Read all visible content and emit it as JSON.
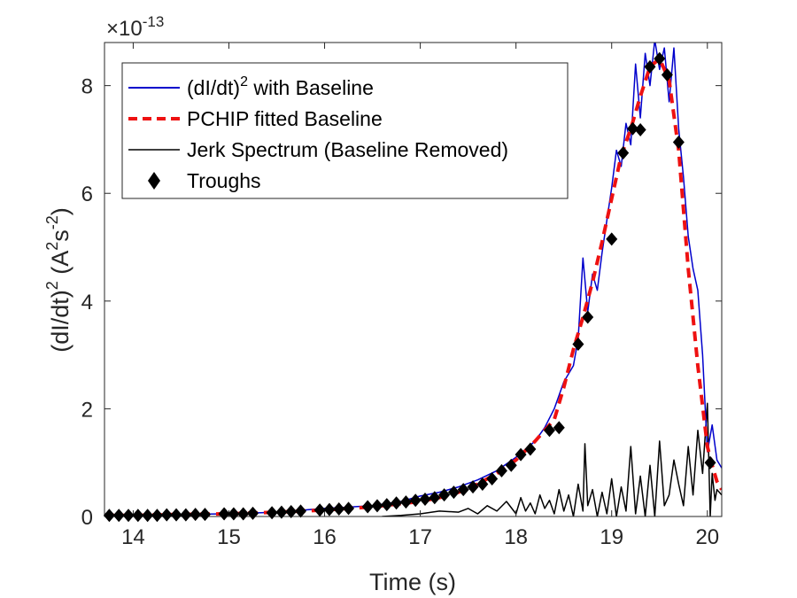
{
  "chart_data": {
    "type": "line",
    "xlabel": "Time (s)",
    "ylabel": {
      "base": "(dI/dt)",
      "exp1": "2",
      "mid": " (A",
      "exp2": "2",
      "mid2": "s",
      "exp3": "-2",
      "end": ")"
    },
    "y_multiplier": {
      "prefix": "×10",
      "exponent": "-13"
    },
    "xlim": [
      13.7,
      20.15
    ],
    "ylim": [
      0,
      8.8
    ],
    "xticks": [
      14,
      15,
      16,
      17,
      18,
      19,
      20
    ],
    "yticks": [
      0,
      2,
      4,
      6,
      8
    ],
    "legend_position": "top-left",
    "legend": [
      {
        "label": "(dI/dt)",
        "sup": "2",
        "after": " with Baseline",
        "color": "#0000cc",
        "style": "solid"
      },
      {
        "label": "PCHIP fitted Baseline",
        "sup": "",
        "after": "",
        "color": "#ee1111",
        "style": "dashed"
      },
      {
        "label": "Jerk Spectrum (Baseline Removed)",
        "sup": "",
        "after": "",
        "color": "#000000",
        "style": "solid"
      },
      {
        "label": "Troughs",
        "sup": "",
        "after": "",
        "color": "#000000",
        "style": "marker"
      }
    ],
    "series": [
      {
        "name": "(dI/dt)^2 with Baseline",
        "color": "#0000cc",
        "x": [
          13.7,
          14.0,
          14.5,
          15.0,
          15.5,
          16.0,
          16.5,
          16.8,
          17.0,
          17.2,
          17.4,
          17.6,
          17.8,
          18.0,
          18.1,
          18.2,
          18.3,
          18.4,
          18.5,
          18.6,
          18.65,
          18.7,
          18.75,
          18.8,
          18.85,
          18.9,
          18.95,
          19.0,
          19.05,
          19.1,
          19.15,
          19.2,
          19.25,
          19.3,
          19.35,
          19.4,
          19.45,
          19.5,
          19.55,
          19.6,
          19.65,
          19.7,
          19.75,
          19.8,
          19.85,
          19.9,
          19.95,
          20.0,
          20.05,
          20.1,
          20.15
        ],
        "y": [
          0.02,
          0.02,
          0.04,
          0.05,
          0.08,
          0.15,
          0.2,
          0.28,
          0.38,
          0.45,
          0.55,
          0.68,
          0.85,
          1.1,
          1.25,
          1.4,
          1.65,
          2.0,
          2.5,
          2.8,
          3.3,
          4.8,
          3.8,
          4.5,
          4.2,
          4.9,
          5.5,
          6.1,
          6.8,
          6.5,
          7.3,
          6.9,
          8.4,
          7.4,
          8.6,
          8.0,
          8.85,
          8.3,
          8.7,
          7.7,
          8.7,
          7.2,
          6.3,
          5.2,
          4.6,
          4.2,
          3.0,
          1.2,
          1.7,
          1.05,
          0.9
        ]
      },
      {
        "name": "PCHIP fitted Baseline",
        "color": "#ee1111",
        "x": [
          13.7,
          14.0,
          14.5,
          15.0,
          15.5,
          16.0,
          16.5,
          17.0,
          17.2,
          17.4,
          17.6,
          17.8,
          18.0,
          18.2,
          18.3,
          18.4,
          18.5,
          18.6,
          18.7,
          18.8,
          18.9,
          19.0,
          19.1,
          19.2,
          19.3,
          19.4,
          19.5,
          19.6,
          19.7,
          19.8,
          19.9,
          20.0,
          20.05,
          20.1,
          20.15
        ],
        "y": [
          0.02,
          0.02,
          0.04,
          0.05,
          0.08,
          0.12,
          0.18,
          0.28,
          0.35,
          0.45,
          0.6,
          0.8,
          1.05,
          1.4,
          1.6,
          1.8,
          2.4,
          3.1,
          3.7,
          4.35,
          5.1,
          5.9,
          6.7,
          7.2,
          7.8,
          8.35,
          8.5,
          8.1,
          6.8,
          4.6,
          2.8,
          1.3,
          0.95,
          0.65,
          0.5
        ]
      },
      {
        "name": "Jerk Spectrum (Baseline Removed)",
        "color": "#000000",
        "x": [
          16.6,
          16.8,
          17.0,
          17.2,
          17.4,
          17.5,
          17.6,
          17.7,
          17.8,
          17.9,
          18.0,
          18.05,
          18.1,
          18.15,
          18.2,
          18.25,
          18.3,
          18.35,
          18.4,
          18.45,
          18.5,
          18.55,
          18.6,
          18.65,
          18.7,
          18.72,
          18.75,
          18.8,
          18.85,
          18.9,
          18.95,
          19.0,
          19.05,
          19.1,
          19.15,
          19.2,
          19.25,
          19.3,
          19.35,
          19.4,
          19.45,
          19.5,
          19.55,
          19.6,
          19.65,
          19.7,
          19.75,
          19.8,
          19.85,
          19.9,
          19.95,
          20.0,
          20.03,
          20.05,
          20.08,
          20.1,
          20.15
        ],
        "y": [
          0.0,
          0.02,
          0.05,
          0.1,
          0.08,
          0.15,
          0.05,
          0.2,
          0.1,
          0.28,
          0.05,
          0.35,
          0.1,
          0.25,
          0.05,
          0.4,
          0.15,
          0.3,
          0.05,
          0.5,
          0.1,
          0.4,
          0.0,
          0.6,
          0.1,
          1.35,
          0.2,
          0.5,
          0.0,
          0.45,
          0.05,
          0.7,
          0.0,
          0.55,
          0.1,
          1.3,
          0.05,
          0.75,
          0.0,
          0.95,
          0.0,
          1.4,
          0.2,
          0.4,
          1.05,
          0.6,
          0.2,
          1.3,
          0.4,
          1.6,
          0.8,
          2.1,
          0.0,
          0.8,
          0.3,
          0.5,
          0.4
        ]
      }
    ],
    "troughs": {
      "x": [
        13.75,
        13.85,
        13.95,
        14.05,
        14.15,
        14.25,
        14.35,
        14.45,
        14.55,
        14.65,
        14.75,
        14.95,
        15.05,
        15.15,
        15.25,
        15.45,
        15.55,
        15.65,
        15.75,
        15.95,
        16.05,
        16.15,
        16.25,
        16.45,
        16.55,
        16.65,
        16.75,
        16.85,
        16.95,
        17.05,
        17.15,
        17.25,
        17.35,
        17.45,
        17.55,
        17.65,
        17.75,
        17.85,
        17.95,
        18.05,
        18.15,
        18.35,
        18.45,
        18.65,
        18.75,
        19.0,
        19.12,
        19.22,
        19.3,
        19.4,
        19.5,
        19.58,
        19.7,
        20.03
      ],
      "y": [
        0.02,
        0.02,
        0.02,
        0.02,
        0.02,
        0.02,
        0.03,
        0.03,
        0.03,
        0.04,
        0.04,
        0.05,
        0.05,
        0.05,
        0.06,
        0.07,
        0.08,
        0.09,
        0.1,
        0.12,
        0.13,
        0.14,
        0.15,
        0.18,
        0.2,
        0.22,
        0.25,
        0.27,
        0.3,
        0.32,
        0.35,
        0.4,
        0.45,
        0.5,
        0.55,
        0.6,
        0.7,
        0.85,
        0.95,
        1.15,
        1.25,
        1.6,
        1.65,
        3.2,
        3.7,
        5.15,
        6.75,
        7.2,
        7.18,
        8.35,
        8.5,
        8.2,
        6.95,
        1.0
      ]
    }
  }
}
